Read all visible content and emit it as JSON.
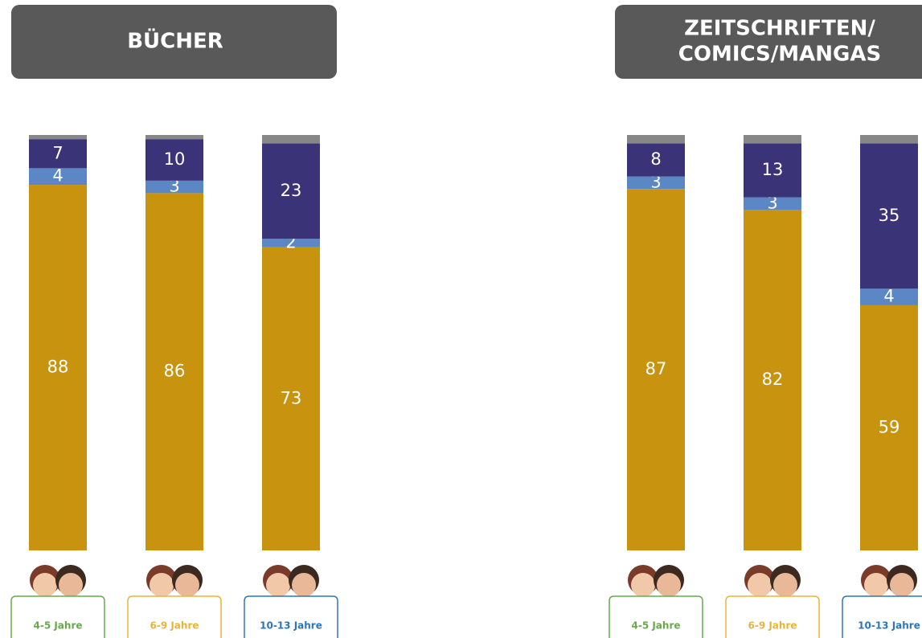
{
  "chart_data": [
    {
      "type": "bar",
      "stacked": true,
      "title": [
        "BÜCHER"
      ],
      "categories": [
        "4-5 Jahre",
        "6-9 Jahre",
        "10-13 Jahre"
      ],
      "category_colors": [
        "#6aa84f",
        "#e8b43a",
        "#2e75b6"
      ],
      "ylim": [
        0,
        100
      ],
      "series": [
        {
          "color": "#c8930f",
          "values": [
            88,
            86,
            73
          ],
          "labels": true
        },
        {
          "color": "#5b87c5",
          "values": [
            4,
            3,
            2
          ],
          "labels": true
        },
        {
          "color": "#3a3378",
          "values": [
            7,
            10,
            23
          ],
          "labels": true
        },
        {
          "color": "#878787",
          "values": [
            1,
            1,
            2
          ],
          "labels": false
        }
      ]
    },
    {
      "type": "bar",
      "stacked": true,
      "title": [
        "ZEITSCHRIFTEN/",
        "COMICS/MANGAS"
      ],
      "categories": [
        "4-5 Jahre",
        "6-9 Jahre",
        "10-13 Jahre"
      ],
      "category_colors": [
        "#6aa84f",
        "#e8b43a",
        "#2e75b6"
      ],
      "ylim": [
        0,
        100
      ],
      "series": [
        {
          "color": "#c8930f",
          "values": [
            87,
            82,
            59
          ],
          "labels": true
        },
        {
          "color": "#5b87c5",
          "values": [
            3,
            3,
            4
          ],
          "labels": true
        },
        {
          "color": "#3a3378",
          "values": [
            8,
            13,
            35
          ],
          "labels": true
        },
        {
          "color": "#878787",
          "values": [
            2,
            2,
            2
          ],
          "labels": false
        }
      ]
    }
  ]
}
